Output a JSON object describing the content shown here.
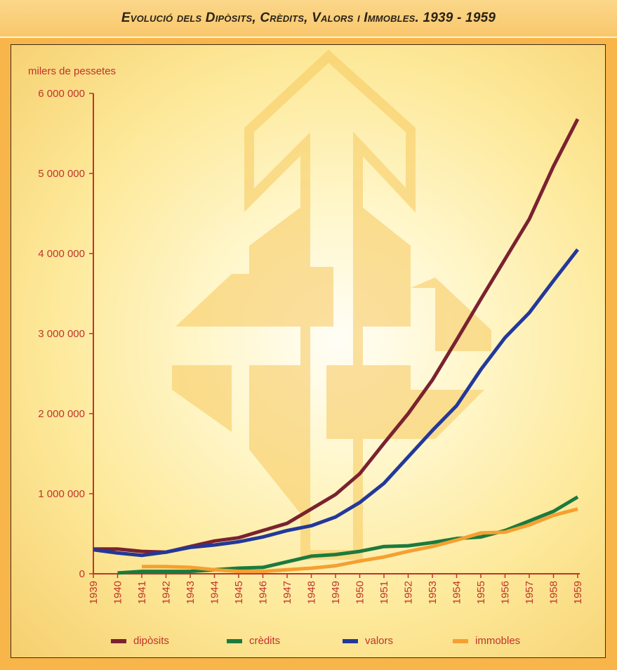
{
  "title": "Evolució dels Dipòsits, Crèdits, Valors i Immobles. 1939 - 1959",
  "chart_data": {
    "type": "line",
    "ylabel": "milers de pessetes",
    "ylim": [
      0,
      6000000
    ],
    "yticks": [
      0,
      1000000,
      2000000,
      3000000,
      4000000,
      5000000,
      6000000
    ],
    "ytick_labels": [
      "0",
      "1 000 000",
      "2 000 000",
      "3 000 000",
      "4 000 000",
      "5 000 000",
      "6 000 000"
    ],
    "categories": [
      "1939",
      "1940",
      "1941",
      "1942",
      "1943",
      "1944",
      "1945",
      "1946",
      "1947",
      "1948",
      "1949",
      "1950",
      "1951",
      "1952",
      "1953",
      "1954",
      "1955",
      "1956",
      "1957",
      "1958",
      "1959"
    ],
    "legend_position": "bottom",
    "series": [
      {
        "name": "dipòsits",
        "color": "#7a2230",
        "values": [
          310000,
          310000,
          280000,
          270000,
          340000,
          410000,
          450000,
          540000,
          630000,
          810000,
          990000,
          1250000,
          1630000,
          2000000,
          2420000,
          2920000,
          3430000,
          3930000,
          4430000,
          5090000,
          5680000
        ]
      },
      {
        "name": "crèdits",
        "color": "#1c7a3e",
        "values": [
          null,
          10000,
          30000,
          30000,
          30000,
          50000,
          70000,
          80000,
          150000,
          220000,
          240000,
          280000,
          340000,
          350000,
          390000,
          440000,
          460000,
          540000,
          660000,
          780000,
          960000
        ]
      },
      {
        "name": "valors",
        "color": "#23389a",
        "values": [
          300000,
          260000,
          230000,
          270000,
          330000,
          360000,
          400000,
          460000,
          540000,
          600000,
          710000,
          890000,
          1130000,
          1460000,
          1790000,
          2100000,
          2550000,
          2950000,
          3260000,
          3660000,
          4050000
        ]
      },
      {
        "name": "immobles",
        "color": "#f5a030",
        "values": [
          null,
          null,
          90000,
          90000,
          80000,
          50000,
          30000,
          30000,
          50000,
          70000,
          100000,
          160000,
          210000,
          280000,
          340000,
          420000,
          510000,
          520000,
          610000,
          730000,
          810000
        ]
      }
    ]
  }
}
